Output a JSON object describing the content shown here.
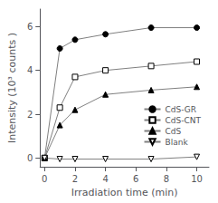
{
  "chart_data": {
    "type": "line",
    "xlabel": "Irradiation time (min)",
    "ylabel": "Intensity (10³ counts )",
    "xlim": [
      -0.3,
      10.8
    ],
    "xticks": [
      0,
      2,
      4,
      6,
      8,
      10
    ],
    "ylim": [
      -0.4,
      6.8
    ],
    "yticks": [
      0,
      2,
      4,
      6
    ],
    "grid": false,
    "legend": "lower right",
    "series": [
      {
        "name": "CdS-GR",
        "x": [
          0,
          1,
          2,
          4,
          7,
          10
        ],
        "values": [
          0,
          5.0,
          5.4,
          5.65,
          5.95,
          5.95
        ],
        "color": "#808080",
        "marker": "circle",
        "line_style": "solid"
      },
      {
        "name": "CdS-CNT",
        "x": [
          0,
          1,
          2,
          4,
          7,
          10
        ],
        "values": [
          0,
          2.3,
          3.7,
          4.0,
          4.2,
          4.4
        ],
        "color": "#808080",
        "marker": "square_open",
        "line_style": "solid"
      },
      {
        "name": "CdS",
        "x": [
          0,
          1,
          2,
          4,
          7,
          10
        ],
        "values": [
          0,
          1.5,
          2.2,
          2.9,
          3.1,
          3.25
        ],
        "color": "#808080",
        "marker": "triangle",
        "line_style": "solid"
      },
      {
        "name": "Blank",
        "x": [
          0,
          1,
          2,
          4,
          7,
          10
        ],
        "values": [
          0,
          -0.05,
          -0.05,
          -0.05,
          -0.05,
          0.05
        ],
        "color": "#808080",
        "marker": "triangle_down_open",
        "line_style": "solid"
      }
    ]
  }
}
